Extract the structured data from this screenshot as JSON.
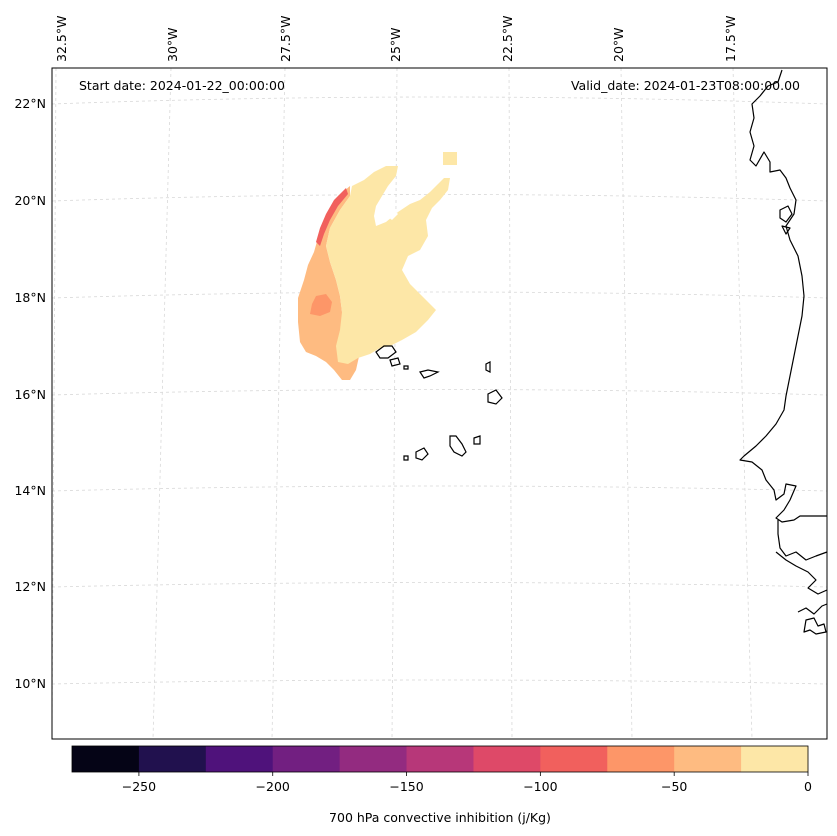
{
  "header": {
    "start_date": "Start date: 2024-01-22_00:00:00",
    "valid_date": "Valid_date: 2024-01-23T08:00:00.00"
  },
  "axes": {
    "lon_labels": [
      "32.5°W",
      "30°W",
      "27.5°W",
      "25°W",
      "22.5°W",
      "20°W",
      "17.5°W"
    ],
    "lat_labels": [
      "22°N",
      "20°N",
      "18°N",
      "16°N",
      "14°N",
      "12°N",
      "10°N"
    ]
  },
  "colorbar": {
    "label": "700 hPa convective inhibition (j/Kg)",
    "ticks": [
      "−250",
      "−200",
      "−150",
      "−100",
      "−50",
      "0"
    ],
    "tick_values": [
      -250,
      -200,
      -150,
      -100,
      -50,
      0
    ],
    "range": [
      -275,
      0
    ],
    "bin_edges": [
      -275,
      -250,
      -225,
      -200,
      -175,
      -150,
      -125,
      -100,
      -75,
      -50,
      -25,
      0
    ],
    "colors": [
      "#050416",
      "#21114e",
      "#4f127b",
      "#721f81",
      "#932b80",
      "#b73779",
      "#de4968",
      "#f1605d",
      "#fd9668",
      "#febb81",
      "#fde7a7"
    ]
  },
  "field_colors": {
    "light": "#fde7a7",
    "orange_light": "#febb81",
    "orange": "#fd9668",
    "red_orange": "#f1605d"
  }
}
